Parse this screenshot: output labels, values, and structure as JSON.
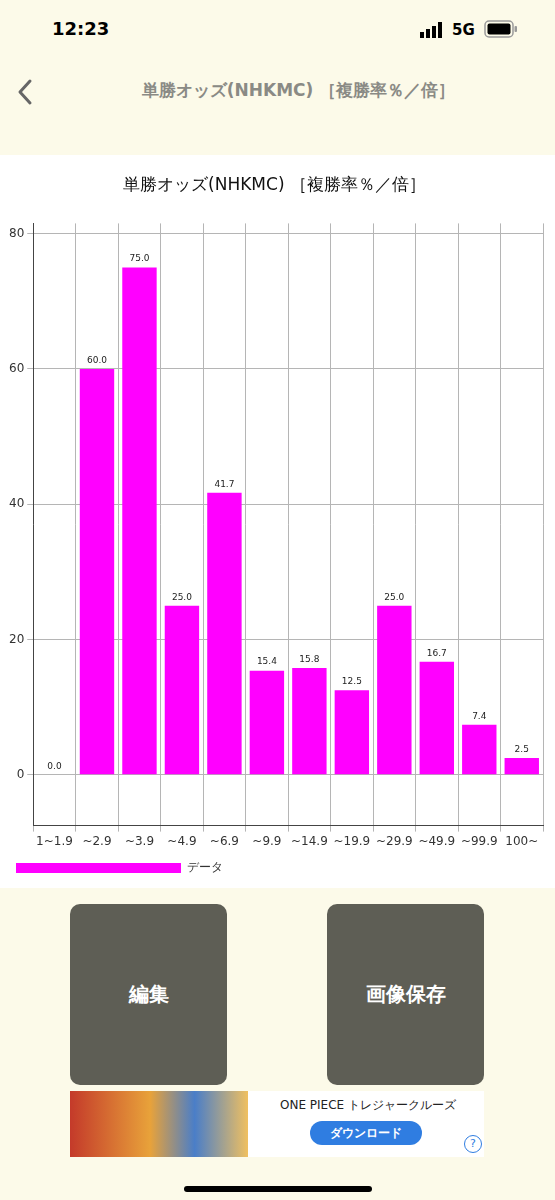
{
  "status_bar": {
    "time": "12:23",
    "network": "5G"
  },
  "header": {
    "title": "単勝オッズ(NHKMC) ［複勝率％／倍］"
  },
  "chart_data": {
    "type": "bar",
    "title": "単勝オッズ(NHKMC) ［複勝率％／倍］",
    "categories": [
      "1~1.9",
      "~2.9",
      "~3.9",
      "~4.9",
      "~6.9",
      "~9.9",
      "~14.9",
      "~19.9",
      "~29.9",
      "~49.9",
      "~99.9",
      "100~"
    ],
    "series": [
      {
        "name": "データ",
        "color": "#ff00ff",
        "values": [
          0.0,
          60.0,
          75.0,
          25.0,
          41.7,
          15.4,
          15.8,
          12.5,
          25.0,
          16.7,
          7.4,
          2.5
        ],
        "value_labels": [
          "0.0",
          "60.0",
          "75.0",
          "25.0",
          "41.7",
          "15.4",
          "15.8",
          "12.5",
          "25.0",
          "16.7",
          "7.4",
          "2.5"
        ]
      }
    ],
    "ylim": [
      -7.5,
      81.5
    ],
    "yticks": [
      0,
      20,
      40,
      60,
      80
    ],
    "grid": true,
    "data_labels": true,
    "legend": "bottom"
  },
  "buttons": [
    "編集",
    "画像保存"
  ],
  "ad": {
    "title": "ONE PIECE トレジャークルーズ",
    "button": "ダウンロード",
    "info": "?"
  }
}
